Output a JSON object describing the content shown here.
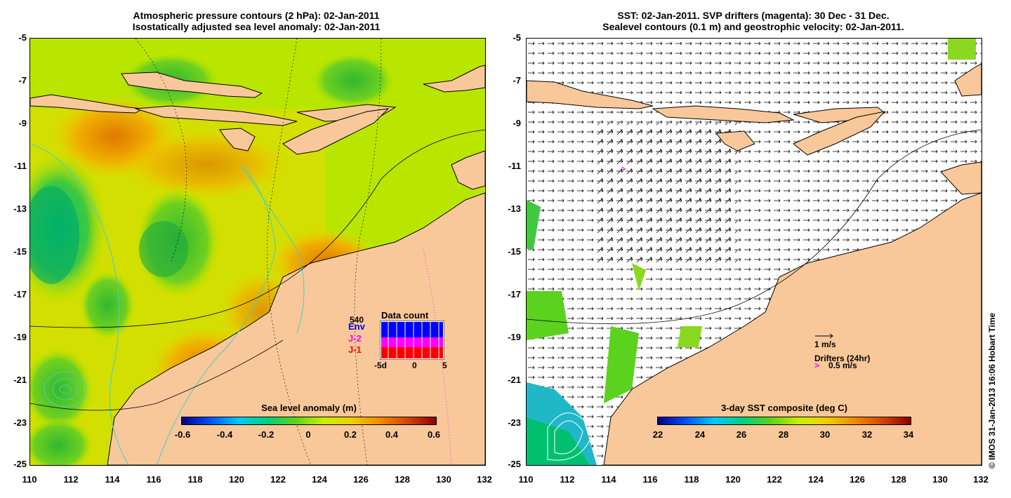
{
  "left_panel": {
    "title_line1": "Atmospheric pressure contours (2 hPa): 02-Jan-2011",
    "title_line2": "Isostatically adjusted sea level anomaly: 02-Jan-2011",
    "y_ticks": [
      "-5",
      "-7",
      "-9",
      "-11",
      "-13",
      "-15",
      "-17",
      "-19",
      "-21",
      "-23",
      "-25"
    ],
    "x_ticks": [
      "110",
      "112",
      "114",
      "116",
      "118",
      "120",
      "122",
      "124",
      "126",
      "128",
      "130",
      "132"
    ],
    "colorbar": {
      "label": "Sea level anomaly (m)",
      "ticks": [
        "-0.6",
        "-0.4",
        "-0.2",
        "0",
        "0.2",
        "0.4",
        "0.6"
      ],
      "colors": [
        "#00007f",
        "#0050ff",
        "#00c8ff",
        "#00d080",
        "#5ad21e",
        "#c8f000",
        "#f0d000",
        "#f08c00",
        "#d24600",
        "#8c0000"
      ]
    },
    "data_count": {
      "title": "Data count",
      "max_label": "540",
      "series": [
        {
          "name": "Env",
          "color": "#0000ff"
        },
        {
          "name": "J-2",
          "color": "#ff00ff"
        },
        {
          "name": "J-1",
          "color": "#ff0000"
        }
      ],
      "x_ticks": [
        "-5d",
        "0",
        "5"
      ]
    }
  },
  "right_panel": {
    "title_line1": "SST: 02-Jan-2011. SVP drifters (magenta): 30 Dec - 31 Dec.",
    "title_line2": "Sealevel contours (0.1 m) and geostrophic velocity: 02-Jan-2011.",
    "y_ticks": [
      "-5",
      "-7",
      "-9",
      "-11",
      "-13",
      "-15",
      "-17",
      "-19",
      "-21",
      "-23",
      "-25"
    ],
    "x_ticks": [
      "110",
      "112",
      "114",
      "116",
      "118",
      "120",
      "122",
      "124",
      "126",
      "128",
      "130",
      "132"
    ],
    "colorbar": {
      "label": "3-day SST composite (deg C)",
      "ticks": [
        "22",
        "24",
        "26",
        "28",
        "30",
        "32",
        "34"
      ],
      "colors": [
        "#00007f",
        "#0050ff",
        "#00c8ff",
        "#00d080",
        "#5ad21e",
        "#c8f000",
        "#f0d000",
        "#f08c00",
        "#d24600",
        "#8c0000"
      ]
    },
    "legend": {
      "velocity_label": "1 m/s",
      "drifters_label": "Drifters (24hr)",
      "drifters_speed": "0.5 m/s"
    }
  },
  "credit": "© IMOS 31-Jan-2013 16:06 Hobart Time",
  "colors": {
    "land": "#f9c89a",
    "coast_line": "#000000",
    "ocean_base": "#b8e600",
    "bathymetry": "#40d0d0",
    "drifter": "#ff00ff"
  }
}
